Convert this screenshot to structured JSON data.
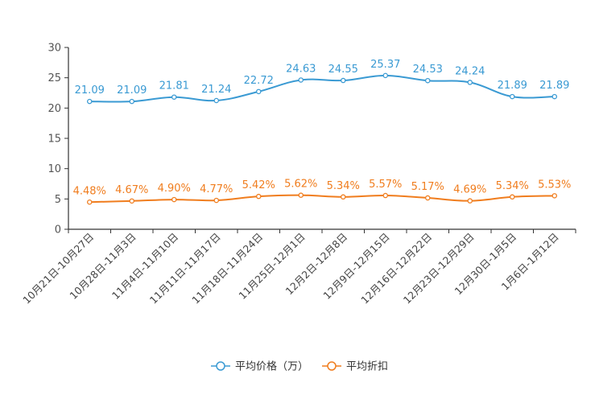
{
  "chart_data": {
    "type": "line",
    "title": "",
    "xlabel": "",
    "ylabel": "",
    "ylim": [
      0,
      30
    ],
    "yticks": [
      0,
      5,
      10,
      15,
      20,
      25,
      30
    ],
    "grid": false,
    "legend_position": "bottom-center",
    "categories": [
      "10月21日-10月27日",
      "10月28日-11月3日",
      "11月4日-11月10日",
      "11月11日-11月17日",
      "11月18日-11月24日",
      "11月25日-12月1日",
      "12月2日-12月8日",
      "12月9日-12月15日",
      "12月16日-12月22日",
      "12月23日-12月29日",
      "12月30日-1月5日",
      "1月6日-1月12日"
    ],
    "series": [
      {
        "name": "平均价格（万）",
        "color": "#3a9ad3",
        "values": [
          21.09,
          21.09,
          21.81,
          21.24,
          22.72,
          24.63,
          24.55,
          25.37,
          24.53,
          24.24,
          21.89,
          21.89
        ],
        "labels": [
          "21.09",
          "21.09",
          "21.81",
          "21.24",
          "22.72",
          "24.63",
          "24.55",
          "25.37",
          "24.53",
          "24.24",
          "21.89",
          "21.89"
        ]
      },
      {
        "name": "平均折扣",
        "color": "#f07d1e",
        "values": [
          4.48,
          4.67,
          4.9,
          4.77,
          5.42,
          5.62,
          5.34,
          5.57,
          5.17,
          4.69,
          5.34,
          5.53
        ],
        "labels": [
          "4.48%",
          "4.67%",
          "4.90%",
          "4.77%",
          "5.42%",
          "5.62%",
          "5.34%",
          "5.57%",
          "5.17%",
          "4.69%",
          "5.34%",
          "5.53%"
        ]
      }
    ]
  }
}
